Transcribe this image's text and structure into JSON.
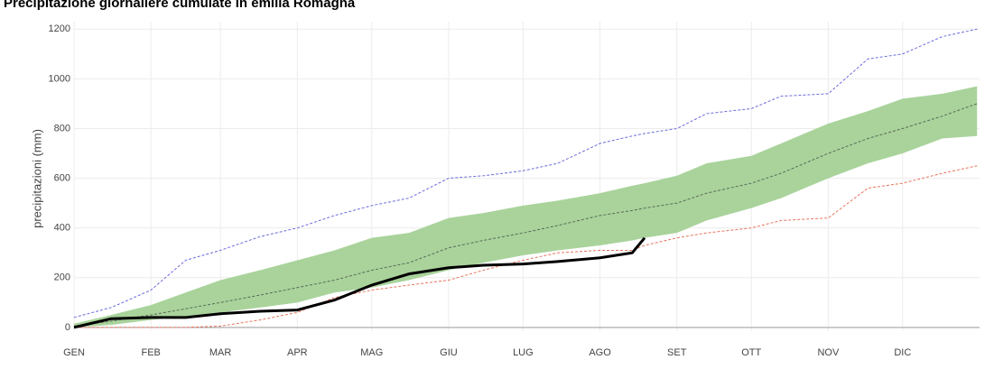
{
  "chart_data": {
    "type": "line",
    "title": "Precipitazione giornaliere cumulate in emilia Romagna",
    "y_label": "precipitazioni (mm)",
    "x": [
      0,
      15,
      31,
      45,
      59,
      75,
      90,
      105,
      120,
      135,
      151,
      165,
      181,
      195,
      212,
      225,
      230,
      243,
      255,
      273,
      285,
      304,
      320,
      334,
      350,
      364
    ],
    "xlim": [
      0,
      365
    ],
    "xticks": [
      {
        "value": 0,
        "label": "GEN"
      },
      {
        "value": 31,
        "label": "FEB"
      },
      {
        "value": 59,
        "label": "MAR"
      },
      {
        "value": 90,
        "label": "APR"
      },
      {
        "value": 120,
        "label": "MAG"
      },
      {
        "value": 151,
        "label": "GIU"
      },
      {
        "value": 181,
        "label": "LUG"
      },
      {
        "value": 212,
        "label": "AGO"
      },
      {
        "value": 243,
        "label": "SET"
      },
      {
        "value": 273,
        "label": "OTT"
      },
      {
        "value": 304,
        "label": "NOV"
      },
      {
        "value": 334,
        "label": "DIC"
      }
    ],
    "ylim": [
      -15,
      1230
    ],
    "yticks": [
      0,
      200,
      400,
      600,
      800,
      1000,
      1200
    ],
    "grid": true,
    "band": {
      "color": "#a9d39b",
      "upper": [
        15,
        50,
        90,
        140,
        190,
        230,
        270,
        310,
        360,
        380,
        440,
        460,
        490,
        510,
        540,
        570,
        580,
        610,
        660,
        690,
        740,
        820,
        870,
        920,
        940,
        970
      ],
      "lower": [
        0,
        10,
        30,
        45,
        60,
        80,
        100,
        140,
        160,
        190,
        230,
        260,
        290,
        310,
        330,
        350,
        360,
        380,
        430,
        480,
        520,
        600,
        660,
        700,
        760,
        770
      ]
    },
    "series": [
      {
        "color": "#6b6bdd",
        "dashed": true,
        "width": 1,
        "values": [
          40,
          80,
          150,
          270,
          310,
          365,
          400,
          450,
          490,
          520,
          600,
          610,
          630,
          660,
          740,
          770,
          780,
          800,
          860,
          880,
          930,
          940,
          1080,
          1100,
          1170,
          1200
        ]
      },
      {
        "color": "#5a6a5a",
        "dashed": true,
        "width": 1,
        "values": [
          5,
          25,
          50,
          75,
          100,
          130,
          160,
          190,
          230,
          260,
          320,
          350,
          380,
          410,
          450,
          470,
          480,
          500,
          540,
          580,
          620,
          700,
          760,
          800,
          850,
          900
        ]
      },
      {
        "color": "#e8735a",
        "dashed": true,
        "width": 1,
        "values": [
          0,
          0,
          0,
          0,
          5,
          30,
          60,
          120,
          150,
          170,
          190,
          230,
          270,
          300,
          310,
          310,
          330,
          360,
          380,
          400,
          430,
          440,
          560,
          580,
          620,
          650
        ]
      },
      {
        "color": "#000000",
        "dashed": false,
        "width": 3,
        "values": [
          0,
          35,
          40,
          40,
          55,
          65,
          70,
          110,
          170,
          215,
          240,
          250,
          255,
          265,
          280,
          300,
          360,
          null,
          null,
          null,
          null,
          null,
          null,
          null,
          null,
          null
        ]
      }
    ]
  }
}
